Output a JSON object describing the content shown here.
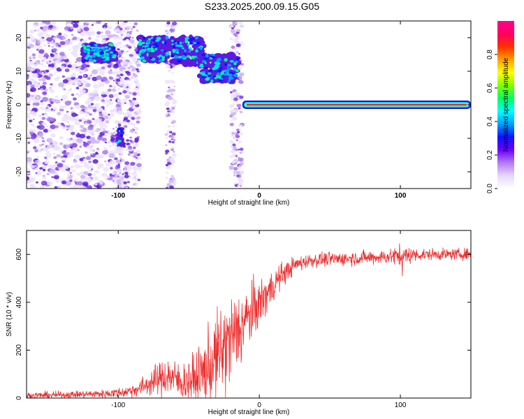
{
  "title": "S233.2025.200.09.15.G05",
  "colors": {
    "snr_line": "#ee2e2e",
    "carrier": [
      "#1f0fd0",
      "#00e0ff",
      "#ff2020"
    ],
    "purple_speckle": [
      "#ece2ff",
      "#cdb2f7",
      "#a679ef",
      "#7f3fe8",
      "#5b1be0"
    ]
  },
  "chart_data": [
    {
      "type": "heatmap",
      "xlabel": "Height of straight line (km)",
      "ylabel": "Frequency (Hz)",
      "xlim": [
        -165,
        150
      ],
      "ylim": [
        -25,
        25
      ],
      "xticks": [
        -100,
        0,
        100
      ],
      "yticks": [
        -20,
        -10,
        0,
        10,
        20
      ],
      "colorbar": {
        "label": "Normalized spectral amplitude",
        "range": [
          0,
          1
        ],
        "ticks": [
          0.0,
          0.2,
          0.4,
          0.6,
          0.8
        ],
        "tick_labels": [
          "0.0",
          "0.2",
          "0.4",
          "0.6",
          "0.8"
        ],
        "colormap": [
          "#ffffff",
          "#e6d6ff",
          "#b37cf0",
          "#6a00ff",
          "#1010ff",
          "#00a0ff",
          "#00ffff",
          "#00ff60",
          "#80ff00",
          "#ffff00",
          "#ffa000",
          "#ff3000",
          "#ff0060",
          "#ff0090"
        ]
      },
      "features": [
        {
          "kind": "speckle_region",
          "x": [
            -165,
            -98
          ],
          "y": [
            -25,
            25
          ],
          "level": 0.1
        },
        {
          "kind": "speckle_band",
          "x": [
            -100,
            -85
          ],
          "y": [
            -25,
            25
          ],
          "level": 0.08
        },
        {
          "kind": "speckle_band",
          "x": [
            -66,
            -60
          ],
          "y": [
            -25,
            25
          ],
          "level": 0.1
        },
        {
          "kind": "speckle_band",
          "x": [
            -20,
            -12
          ],
          "y": [
            -25,
            25
          ],
          "level": 0.12
        },
        {
          "kind": "cluster",
          "x": [
            -125,
            -102
          ],
          "y": [
            13,
            18
          ],
          "level": 0.35
        },
        {
          "kind": "cluster",
          "x": [
            -85,
            -65
          ],
          "y": [
            13,
            20
          ],
          "level": 0.4
        },
        {
          "kind": "cluster",
          "x": [
            -62,
            -40
          ],
          "y": [
            12,
            20
          ],
          "level": 0.42
        },
        {
          "kind": "cluster",
          "x": [
            -42,
            -15
          ],
          "y": [
            7,
            15
          ],
          "level": 0.45
        },
        {
          "kind": "spot",
          "x": [
            -101,
            -96
          ],
          "y": [
            -12,
            -7
          ],
          "level": 0.35
        },
        {
          "kind": "carrier_line",
          "x": [
            -12,
            150
          ],
          "y": [
            0,
            0
          ],
          "level": 0.95
        }
      ]
    },
    {
      "type": "line",
      "xlabel": "Height of straight line (km)",
      "ylabel": "SNR (10 * v/v)",
      "xlim": [
        -165,
        150
      ],
      "ylim": [
        0,
        700
      ],
      "xticks": [
        -100,
        0,
        100
      ],
      "yticks": [
        0,
        200,
        400,
        600
      ],
      "series": [
        {
          "x": [
            -165,
            -150,
            -130,
            -110,
            -95,
            -85,
            -75,
            -65,
            -55,
            -45,
            -35,
            -25,
            -15,
            -5,
            5,
            15,
            25,
            35,
            50,
            70,
            90,
            100,
            110,
            120,
            135,
            150
          ],
          "values": [
            10,
            12,
            15,
            18,
            25,
            40,
            70,
            95,
            65,
            80,
            130,
            210,
            280,
            360,
            430,
            510,
            555,
            575,
            580,
            585,
            590,
            595,
            598,
            600,
            600,
            602
          ],
          "noise_amplitude": [
            25,
            25,
            25,
            30,
            40,
            60,
            100,
            150,
            130,
            180,
            280,
            350,
            300,
            200,
            150,
            90,
            60,
            50,
            50,
            50,
            50,
            80,
            50,
            40,
            40,
            40
          ]
        }
      ]
    }
  ]
}
